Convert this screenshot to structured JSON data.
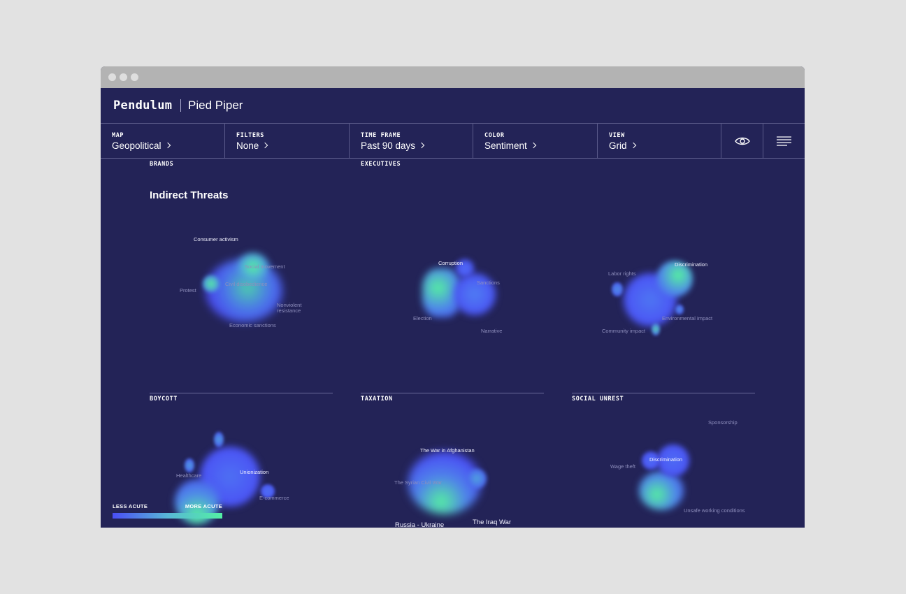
{
  "app": {
    "name": "Pendulum",
    "workspace": "Pied Piper"
  },
  "toolbar": {
    "map": {
      "label": "MAP",
      "value": "Geopolitical"
    },
    "filters": {
      "label": "FILTERS",
      "value": "None"
    },
    "timeframe": {
      "label": "TIME FRAME",
      "value": "Past 90 days"
    },
    "color": {
      "label": "COLOR",
      "value": "Sentiment"
    },
    "view": {
      "label": "VIEW",
      "value": "Grid"
    },
    "icons": [
      "eye-icon",
      "menu-icon"
    ]
  },
  "sections": {
    "brands": "BRANDS",
    "executives": "EXECUTIVES",
    "heading": "Indirect Threats",
    "boycott": "BOYCOTT",
    "taxation": "TAXATION",
    "social_unrest": "SOCIAL UNREST"
  },
  "clusters": {
    "c1": [
      "Consumer activism",
      "Social movement",
      "Civil disobedience",
      "Protest",
      "Nonviolent",
      "resistance",
      "Economic sanctions"
    ],
    "c2": [
      "Corruption",
      "Sanctions",
      "Election",
      "Narrative"
    ],
    "c3": [
      "Labor rights",
      "Discrimination",
      "Environmental impact",
      "Community impact"
    ],
    "c4": [
      "Healthcare",
      "Unionization",
      "E-commerce"
    ],
    "c5": [
      "The War in Afghanistan",
      "The Syrian Civil War",
      "Russia - Ukraine",
      "The Iraq War"
    ],
    "c6": [
      "Sponsorship",
      "Discrimination",
      "Wage theft",
      "Unsafe working conditions"
    ]
  },
  "legend": {
    "less": "LESS ACUTE",
    "more": "MORE ACUTE"
  },
  "colors": {
    "background": "#232357",
    "low": "#4a4ef5",
    "high": "#53f0a4"
  }
}
